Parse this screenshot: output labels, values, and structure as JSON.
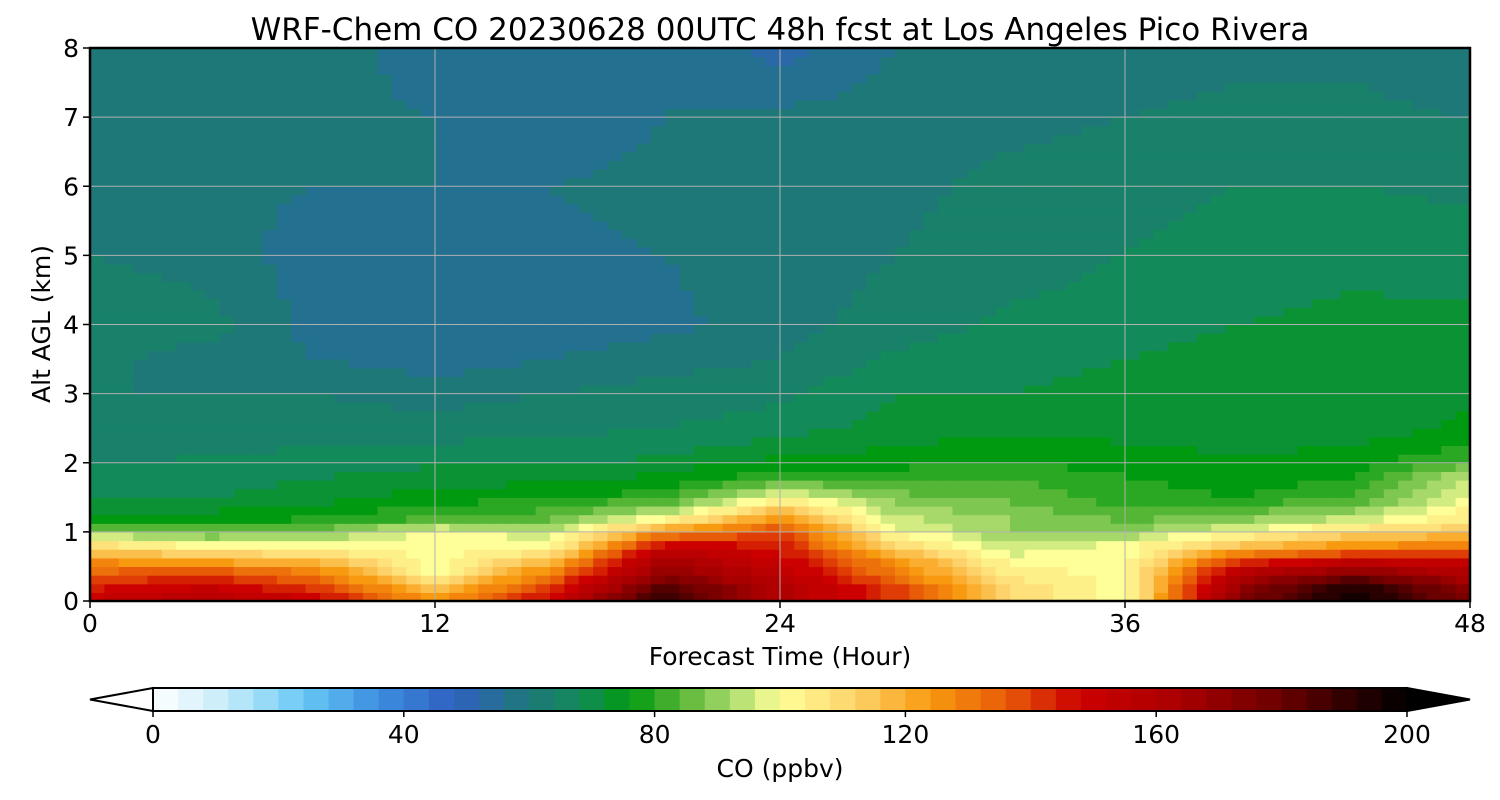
{
  "chart_data": {
    "type": "heatmap",
    "title": "WRF-Chem CO  20230628 00UTC 48h fcst at Los Angeles Pico Rivera",
    "xlabel": "Forecast Time (Hour)",
    "ylabel": "Alt AGL (km)",
    "xlim": [
      0,
      48
    ],
    "ylim": [
      0,
      8
    ],
    "x_ticks": [
      "0",
      "12",
      "24",
      "36",
      "48"
    ],
    "y_ticks": [
      "0",
      "1",
      "2",
      "3",
      "4",
      "5",
      "6",
      "7",
      "8"
    ],
    "grid": true,
    "x_hours": [
      0,
      4,
      8,
      12,
      16,
      20,
      24,
      28,
      32,
      36,
      40,
      44,
      48
    ],
    "y_km": [
      0,
      0.2,
      0.4,
      0.6,
      0.8,
      1.0,
      1.2,
      1.5,
      1.8,
      2.1,
      2.5,
      3.0,
      3.5,
      4.0,
      5.0,
      6.0,
      7.0,
      8.0
    ],
    "co_ppbv": [
      [
        150,
        160,
        150,
        125,
        150,
        195,
        160,
        140,
        110,
        100,
        175,
        200,
        175
      ],
      [
        145,
        150,
        140,
        115,
        140,
        185,
        160,
        140,
        110,
        100,
        170,
        195,
        170
      ],
      [
        135,
        140,
        130,
        100,
        130,
        170,
        155,
        130,
        105,
        100,
        160,
        175,
        160
      ],
      [
        125,
        120,
        115,
        100,
        115,
        165,
        150,
        125,
        100,
        100,
        140,
        150,
        150
      ],
      [
        110,
        100,
        100,
        100,
        100,
        150,
        145,
        110,
        95,
        100,
        115,
        125,
        130
      ],
      [
        90,
        85,
        88,
        100,
        95,
        125,
        140,
        100,
        90,
        90,
        100,
        110,
        115
      ],
      [
        75,
        76,
        78,
        82,
        85,
        100,
        125,
        95,
        90,
        85,
        88,
        95,
        105
      ],
      [
        70,
        70,
        72,
        76,
        78,
        80,
        100,
        88,
        85,
        80,
        78,
        82,
        100
      ],
      [
        67,
        68,
        70,
        72,
        72,
        75,
        80,
        80,
        82,
        78,
        76,
        78,
        95
      ],
      [
        65,
        66,
        67,
        68,
        68,
        70,
        74,
        75,
        77,
        75,
        74,
        75,
        80
      ],
      [
        63,
        63,
        64,
        64,
        65,
        66,
        68,
        72,
        73,
        73,
        72,
        72,
        75
      ],
      [
        62,
        62,
        62,
        60,
        62,
        64,
        65,
        70,
        70,
        72,
        72,
        72,
        73
      ],
      [
        63,
        60,
        58,
        56,
        58,
        60,
        62,
        67,
        68,
        70,
        72,
        72,
        72
      ],
      [
        66,
        64,
        56,
        54,
        55,
        57,
        60,
        64,
        67,
        68,
        70,
        71,
        71
      ],
      [
        62,
        60,
        56,
        56,
        57,
        58,
        60,
        62,
        64,
        66,
        68,
        69,
        68
      ],
      [
        60,
        59,
        58,
        58,
        58,
        59,
        60,
        61,
        63,
        64,
        66,
        66,
        65
      ],
      [
        60,
        58,
        59,
        58,
        56,
        58,
        59,
        60,
        61,
        62,
        63,
        63,
        62
      ],
      [
        60,
        60,
        60,
        56,
        55,
        58,
        52,
        58,
        60,
        60,
        61,
        61,
        58
      ]
    ],
    "colorbar": {
      "label": "CO  (ppbv)",
      "min": 0,
      "max": 200,
      "ticks": [
        "0",
        "40",
        "80",
        "120",
        "160",
        "200"
      ],
      "extend": "both",
      "stops": [
        {
          "v": 0,
          "c": "#ffffff"
        },
        {
          "v": 12,
          "c": "#c4ebf8"
        },
        {
          "v": 24,
          "c": "#69c8f5"
        },
        {
          "v": 36,
          "c": "#3b8ddf"
        },
        {
          "v": 48,
          "c": "#3060c0"
        },
        {
          "v": 60,
          "c": "#1e7878"
        },
        {
          "v": 68,
          "c": "#138a5a"
        },
        {
          "v": 76,
          "c": "#009a10"
        },
        {
          "v": 84,
          "c": "#55b535"
        },
        {
          "v": 92,
          "c": "#a6d96a"
        },
        {
          "v": 100,
          "c": "#ffff99"
        },
        {
          "v": 112,
          "c": "#fdd26a"
        },
        {
          "v": 124,
          "c": "#f89a10"
        },
        {
          "v": 136,
          "c": "#e85c08"
        },
        {
          "v": 148,
          "c": "#cc0000"
        },
        {
          "v": 164,
          "c": "#a80000"
        },
        {
          "v": 180,
          "c": "#6a0000"
        },
        {
          "v": 192,
          "c": "#280000"
        },
        {
          "v": 200,
          "c": "#000000"
        }
      ]
    }
  }
}
